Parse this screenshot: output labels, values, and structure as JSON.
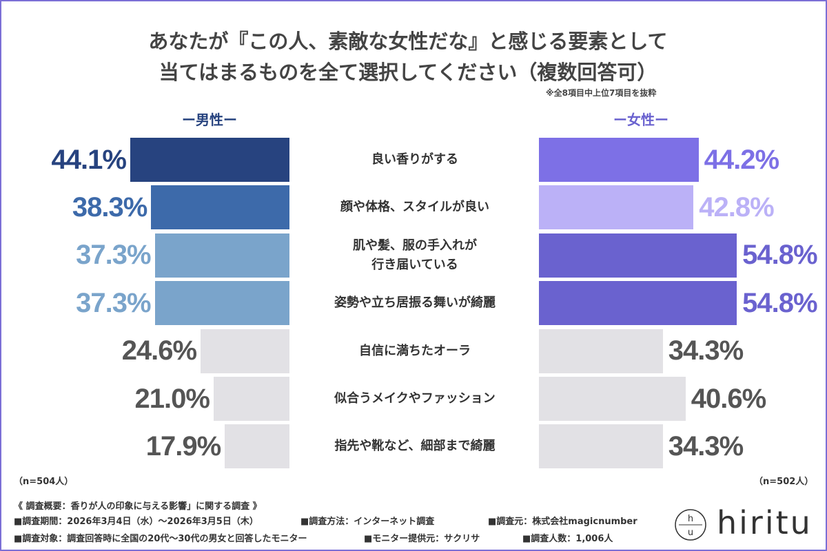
{
  "chart_data": {
    "type": "butterfly-bar",
    "title": "あなたが『この人、素敵な女性だな』と感じる要素として\n当てはまるものを全て選択してください（複数回答可）",
    "note": "※全8項目中上位7項目を抜粋",
    "categories": [
      "良い香りがする",
      "顔や体格、スタイルが良い",
      "肌や髪、服の手入れが\n行き届いている",
      "姿勢や立ち居振る舞いが綺麗",
      "自信に満ちたオーラ",
      "似合うメイクやファッション",
      "指先や靴など、細部まで綺麗"
    ],
    "series": [
      {
        "name": "ー男性ー",
        "color": "#27437f",
        "n_label": "（n=504人）",
        "values": [
          44.1,
          38.3,
          37.3,
          37.3,
          24.6,
          21.0,
          17.9
        ],
        "value_labels": [
          "44.1%",
          "38.3%",
          "37.3%",
          "37.3%",
          "24.6%",
          "21.0%",
          "17.9%"
        ],
        "colors": [
          "#27437f",
          "#3d6aaa",
          "#7aa4cb",
          "#7aa4cb",
          "#e2e1e5",
          "#e2e1e5",
          "#e2e1e5"
        ],
        "label_colors": [
          "#27437f",
          "#3d6aaa",
          "#7aa4cb",
          "#7aa4cb",
          "#555555",
          "#555555",
          "#555555"
        ]
      },
      {
        "name": "ー女性ー",
        "color": "#6a62cf",
        "n_label": "（n=502人）",
        "values": [
          44.2,
          42.8,
          54.8,
          54.8,
          34.3,
          40.6,
          34.3
        ],
        "value_labels": [
          "44.2%",
          "42.8%",
          "54.8%",
          "54.8%",
          "34.3%",
          "40.6%",
          "34.3%"
        ],
        "colors": [
          "#7d70e6",
          "#bbb1f7",
          "#6a62cf",
          "#6a62cf",
          "#e2e1e5",
          "#e2e1e5",
          "#e2e1e5"
        ],
        "label_colors": [
          "#7d70e6",
          "#bbb1f7",
          "#6a62cf",
          "#6a62cf",
          "#555555",
          "#555555",
          "#555555"
        ]
      }
    ]
  },
  "footer": {
    "heading": "《 調査概要：香りが人の印象に与える影響」に関する調査 》",
    "rows": [
      [
        "■調査期間：2026年3月4日（水）～2026年3月5日（木）",
        "■調査方法：インターネット調査",
        "■調査元：株式会社magicnumber"
      ],
      [
        "■調査対象：調査回答時に全国の20代～30代の男女と回答したモニター",
        "■モニター提供元：サクリサ",
        "■調査人数：1,006人"
      ]
    ]
  },
  "logo": {
    "mark_top": "h",
    "mark_bottom": "u",
    "text": "hiritu"
  }
}
